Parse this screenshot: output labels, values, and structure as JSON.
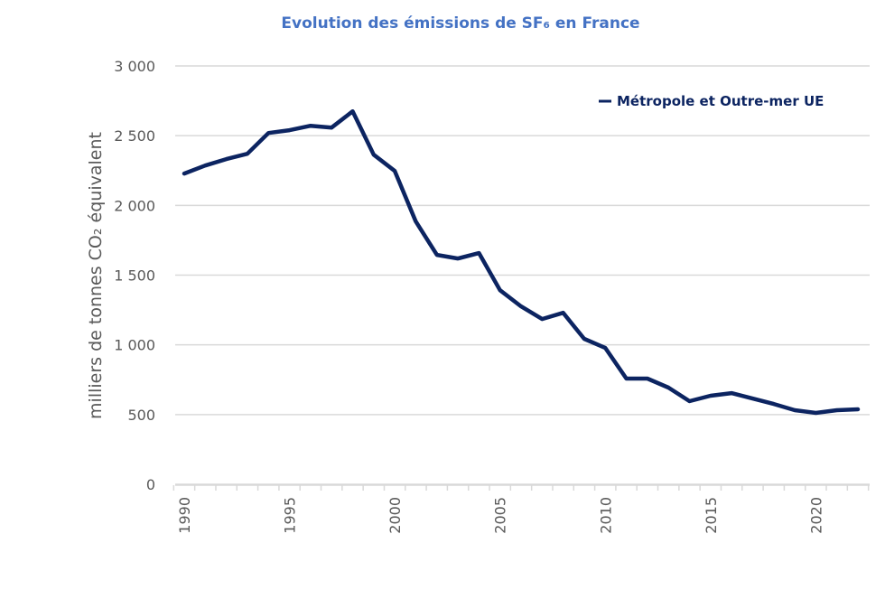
{
  "chart_data": {
    "type": "line",
    "title": "Evolution des émissions de SF₆ en France",
    "xlabel": "",
    "ylabel": "milliers de tonnes CO₂ équivalent",
    "ylim": [
      0,
      3000
    ],
    "yticks": [
      0,
      500,
      1000,
      1500,
      2000,
      2500,
      3000
    ],
    "ytick_labels": [
      "0",
      "500",
      "1 000",
      "1 500",
      "2 000",
      "2 500",
      "3 000"
    ],
    "xticks": [
      1990,
      1995,
      2000,
      2005,
      2010,
      2015,
      2020
    ],
    "xtick_labels": [
      "1990",
      "1995",
      "2000",
      "2005",
      "2010",
      "2015",
      "2020"
    ],
    "grid": true,
    "legend_position": "top-right",
    "x": [
      1990,
      1991,
      1992,
      1993,
      1994,
      1995,
      1996,
      1997,
      1998,
      1999,
      2000,
      2001,
      2002,
      2003,
      2004,
      2005,
      2006,
      2007,
      2008,
      2009,
      2010,
      2011,
      2012,
      2013,
      2014,
      2015,
      2016,
      2017,
      2018,
      2019,
      2020,
      2021,
      2022
    ],
    "series": [
      {
        "name": "Métropole et Outre-mer UE",
        "color": "#0C2461",
        "values": [
          2228,
          2286,
          2332,
          2370,
          2519,
          2539,
          2571,
          2558,
          2675,
          2364,
          2247,
          1885,
          1645,
          1619,
          1658,
          1392,
          1276,
          1185,
          1230,
          1043,
          978,
          758,
          758,
          693,
          596,
          635,
          654,
          615,
          576,
          531,
          512,
          531,
          538
        ]
      }
    ]
  }
}
